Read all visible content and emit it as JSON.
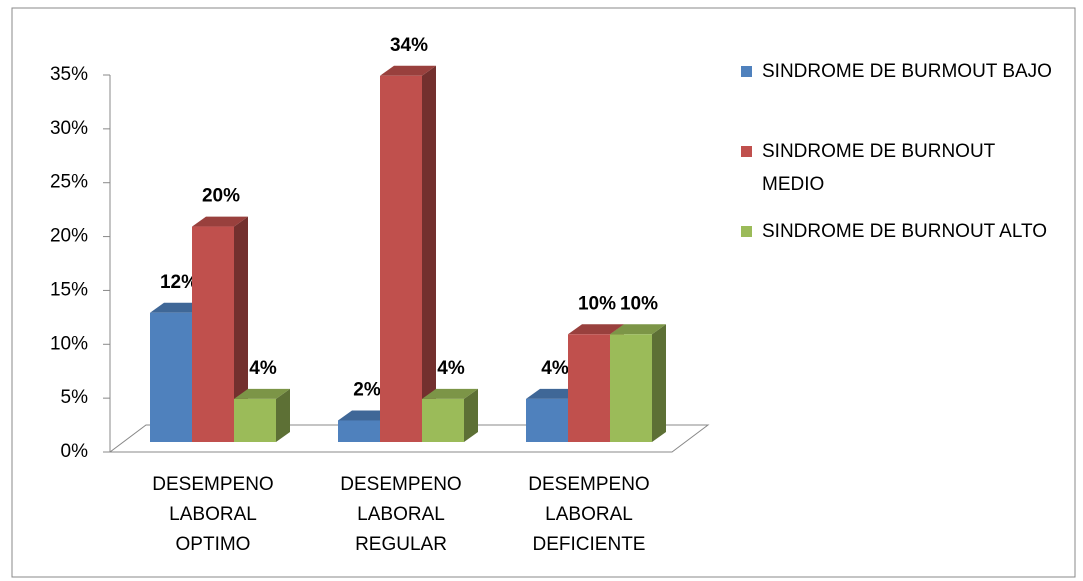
{
  "chart_data": {
    "type": "bar3d",
    "categories": [
      "DESEMPENO LABORAL OPTIMO",
      "DESEMPENO LABORAL REGULAR",
      "DESEMPENO LABORAL DEFICIENTE"
    ],
    "series": [
      {
        "name": "SINDROME DE BURMOUT BAJO",
        "color": "#4f81bd",
        "values": [
          12,
          2,
          4
        ],
        "value_labels": [
          "12%",
          "2%",
          "4%"
        ]
      },
      {
        "name": "SINDROME DE BURNOUT MEDIO",
        "color": "#c0504d",
        "values": [
          20,
          34,
          10
        ],
        "value_labels": [
          "20%",
          "34%",
          "10%"
        ]
      },
      {
        "name": "SINDROME DE BURNOUT ALTO",
        "color": "#9bbb59",
        "values": [
          4,
          4,
          10
        ],
        "value_labels": [
          "4%",
          "4%",
          "10%"
        ]
      }
    ],
    "ylim": [
      0,
      35
    ],
    "yticks": [
      {
        "value": 0,
        "label": "0%"
      },
      {
        "value": 5,
        "label": "5%"
      },
      {
        "value": 10,
        "label": "10%"
      },
      {
        "value": 15,
        "label": "15%"
      },
      {
        "value": 20,
        "label": "20%"
      },
      {
        "value": 25,
        "label": "25%"
      },
      {
        "value": 30,
        "label": "30%"
      },
      {
        "value": 35,
        "label": "35%"
      }
    ],
    "legend": "right"
  }
}
